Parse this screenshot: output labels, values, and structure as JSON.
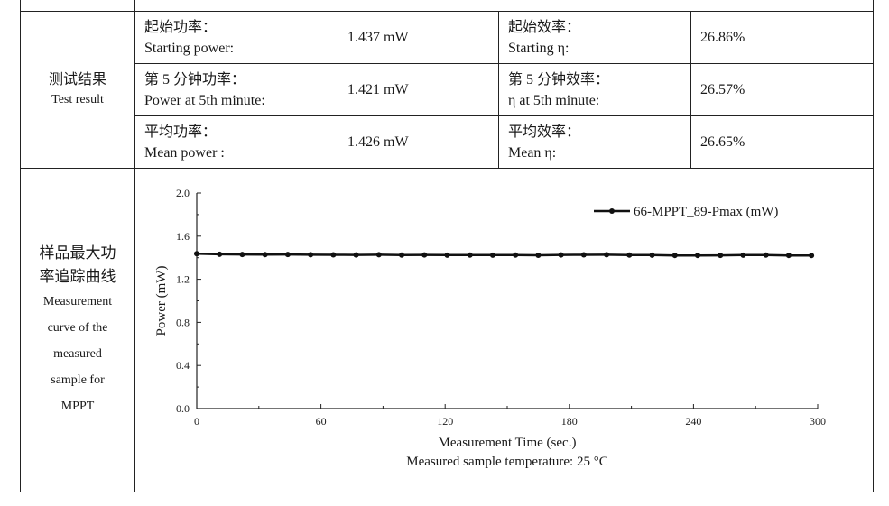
{
  "test_result": {
    "label_cn": "测试结果",
    "label_en": "Test result",
    "rows": [
      {
        "p_label_cn": "起始功率：",
        "p_label_en": "Starting power:",
        "p_value": "1.437 mW",
        "e_label_cn": "起始效率：",
        "e_label_en": "Starting η:",
        "e_value": "26.86%"
      },
      {
        "p_label_cn": "第 5 分钟功率：",
        "p_label_en": "Power at 5th minute:",
        "p_value": "1.421 mW",
        "e_label_cn": "第 5 分钟效率：",
        "e_label_en": "η at 5th minute:",
        "e_value": "26.57%"
      },
      {
        "p_label_cn": "平均功率：",
        "p_label_en": "Mean power :",
        "p_value": "1.426 mW",
        "e_label_cn": "平均效率：",
        "e_label_en": "Mean η:",
        "e_value": "26.65%"
      }
    ]
  },
  "curve_section": {
    "label_cn_1": "样品最大功",
    "label_cn_2": "率追踪曲线",
    "label_en_1": "Measurement",
    "label_en_2": "curve of the",
    "label_en_3": "measured",
    "label_en_4": "sample for",
    "label_en_5": "MPPT"
  },
  "chart_data": {
    "type": "line",
    "xlabel": "Measurement Time (sec.)",
    "caption": "Measured sample temperature: 25 °C",
    "ylabel": "Power (mW)",
    "xlim": [
      0,
      300
    ],
    "ylim": [
      0,
      2.0
    ],
    "xticks": [
      "0",
      "60",
      "120",
      "180",
      "240",
      "300"
    ],
    "yticks": [
      "0.0",
      "0.4",
      "0.8",
      "1.2",
      "1.6",
      "2.0"
    ],
    "series": [
      {
        "name": "66-MPPT_89-Pmax (mW)",
        "x": [
          0,
          11,
          22,
          33,
          44,
          55,
          66,
          77,
          88,
          99,
          110,
          121,
          132,
          143,
          154,
          165,
          176,
          187,
          198,
          209,
          220,
          231,
          242,
          253,
          264,
          275,
          286,
          297
        ],
        "values": [
          1.437,
          1.432,
          1.43,
          1.429,
          1.43,
          1.428,
          1.427,
          1.426,
          1.428,
          1.425,
          1.426,
          1.424,
          1.425,
          1.424,
          1.425,
          1.423,
          1.426,
          1.427,
          1.428,
          1.425,
          1.424,
          1.421,
          1.421,
          1.422,
          1.424,
          1.425,
          1.421,
          1.42
        ]
      }
    ]
  }
}
